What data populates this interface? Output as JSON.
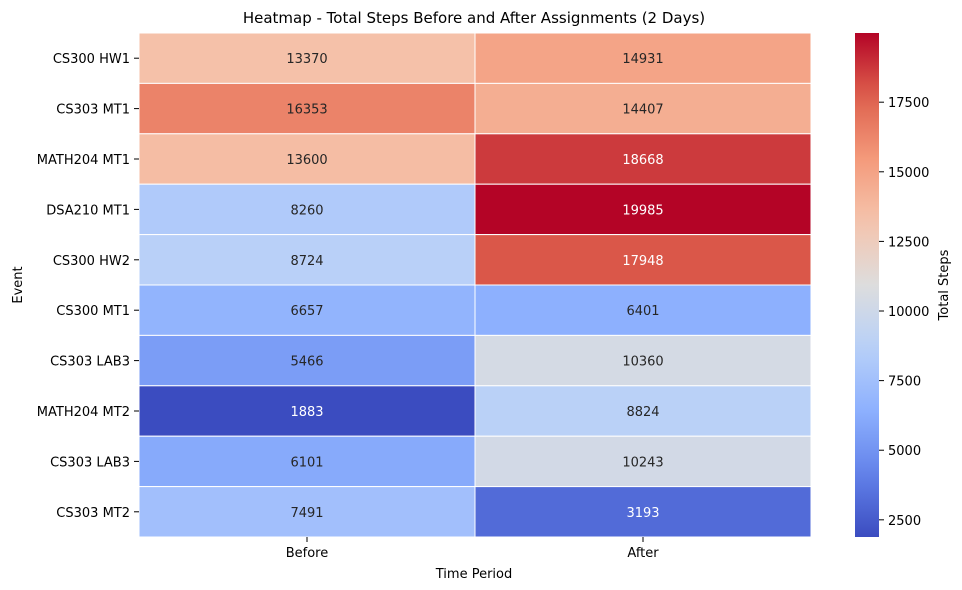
{
  "chart_data": {
    "type": "heatmap",
    "title": "Heatmap - Total Steps Before and After Assignments (2 Days)",
    "xlabel": "Time Period",
    "ylabel": "Event",
    "colorbar_label": "Total Steps",
    "colormap": "coolwarm",
    "x_categories": [
      "Before",
      "After"
    ],
    "y_categories": [
      "CS300 HW1",
      "CS303 MT1",
      "MATH204 MT1",
      "DSA210 MT1",
      "CS300 HW2",
      "CS300 MT1",
      "CS303 LAB3",
      "MATH204 MT2",
      "CS303 LAB3",
      "CS303 MT2"
    ],
    "values": [
      [
        13370,
        14931
      ],
      [
        16353,
        14407
      ],
      [
        13600,
        18668
      ],
      [
        8260,
        19985
      ],
      [
        8724,
        17948
      ],
      [
        6657,
        6401
      ],
      [
        5466,
        10360
      ],
      [
        1883,
        8824
      ],
      [
        6101,
        10243
      ],
      [
        7491,
        3193
      ]
    ],
    "color_range": [
      1883,
      19985
    ],
    "colorbar_ticks": [
      "2500",
      "5000",
      "7500",
      "10000",
      "12500",
      "15000",
      "17500"
    ]
  }
}
